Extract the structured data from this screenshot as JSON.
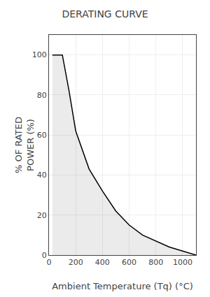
{
  "chart_data": {
    "type": "area",
    "title": "DERATING CURVE",
    "x_label": "Ambient Temperature (Tq) (°C)",
    "y_label": "% OF RATED\nPOWER (%)",
    "x": [
      25,
      70,
      100,
      150,
      200,
      300,
      400,
      500,
      600,
      700,
      800,
      900,
      1000,
      1100
    ],
    "values": [
      100,
      100,
      100,
      82,
      62,
      43,
      32,
      22,
      15,
      10,
      7,
      4,
      2,
      0
    ],
    "color": "#000000",
    "line_style": "solid",
    "xlim": [
      0,
      1100
    ],
    "ylim": [
      0,
      110
    ],
    "xticks": [
      0,
      200,
      400,
      600,
      800,
      1000
    ],
    "yticks": [
      0,
      20,
      40,
      60,
      80,
      100
    ],
    "grid": true
  }
}
